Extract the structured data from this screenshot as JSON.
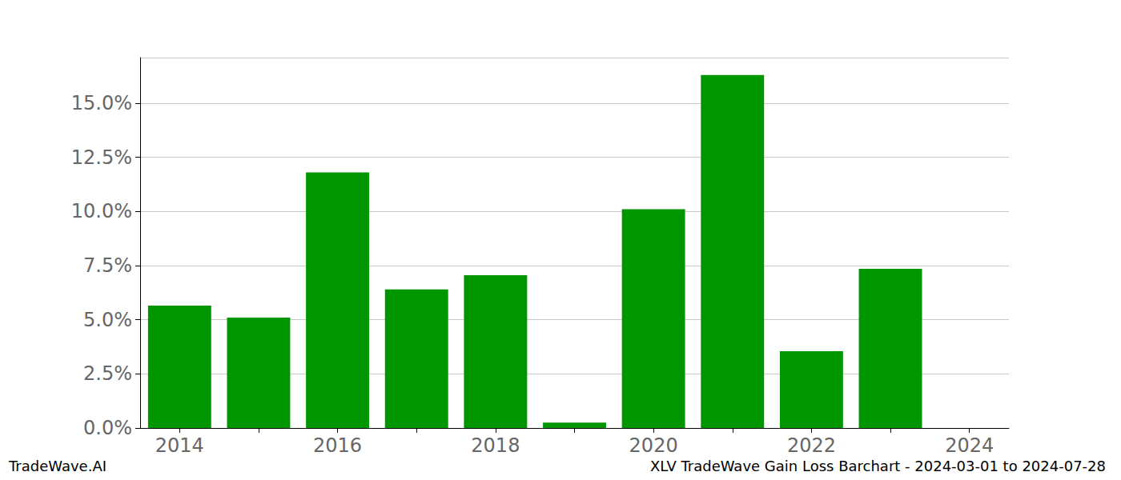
{
  "chart_data": {
    "type": "bar",
    "title": "XLV TradeWave Gain Loss Barchart - 2024-03-01 to 2024-07-28",
    "annotations": [
      "TradeWave.AI"
    ],
    "categories": [
      "2014",
      null,
      "2016",
      null,
      "2018",
      null,
      "2020",
      null,
      "2022",
      null,
      "2024"
    ],
    "values": [
      5.65,
      5.1,
      11.8,
      6.4,
      7.05,
      0.25,
      10.1,
      16.3,
      3.55,
      7.35,
      null
    ],
    "color": "#009600",
    "ylim": [
      0,
      17.1
    ],
    "yticks": [
      {
        "value": 0,
        "label": "0.0%"
      },
      {
        "value": 2.5,
        "label": "2.5%"
      },
      {
        "value": 5,
        "label": "5.0%"
      },
      {
        "value": 7.5,
        "label": "7.5%"
      },
      {
        "value": 10,
        "label": "10.0%"
      },
      {
        "value": 12.5,
        "label": "12.5%"
      },
      {
        "value": 15,
        "label": "15.0%"
      }
    ],
    "grid": true
  }
}
